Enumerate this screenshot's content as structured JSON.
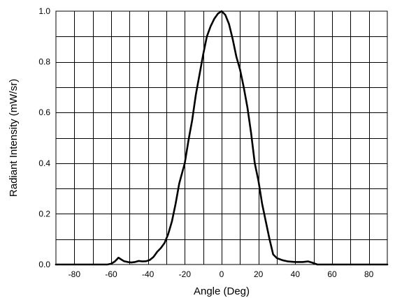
{
  "chart_data": {
    "type": "line",
    "title": "",
    "xlabel": "Angle (Deg)",
    "ylabel": "Radiant Intensity (mW/sr)",
    "xlim": [
      -90,
      90
    ],
    "ylim": [
      0,
      1.0
    ],
    "grid": true,
    "x_ticks": [
      -80,
      -60,
      -40,
      -20,
      0,
      20,
      40,
      60,
      80
    ],
    "x_tick_labels": [
      "-80",
      "-60",
      "-40",
      "-20",
      "0",
      "20",
      "40",
      "60",
      "80"
    ],
    "y_ticks": [
      0.0,
      0.2,
      0.4,
      0.6,
      0.8,
      1.0
    ],
    "y_tick_labels": [
      "0.0",
      "0.2",
      "0.4",
      "0.6",
      "0.8",
      "1.0"
    ],
    "x_grid_step": 10,
    "y_grid_step": 0.1,
    "line_color": "#000000",
    "series": [
      {
        "points": [
          [
            -90,
            0.0
          ],
          [
            -62,
            0.0
          ],
          [
            -60,
            0.003
          ],
          [
            -58,
            0.012
          ],
          [
            -56,
            0.027
          ],
          [
            -55,
            0.022
          ],
          [
            -53,
            0.013
          ],
          [
            -51,
            0.01
          ],
          [
            -49,
            0.008
          ],
          [
            -47,
            0.01
          ],
          [
            -45,
            0.014
          ],
          [
            -43,
            0.012
          ],
          [
            -41,
            0.013
          ],
          [
            -39,
            0.018
          ],
          [
            -37,
            0.03
          ],
          [
            -35,
            0.05
          ],
          [
            -33,
            0.065
          ],
          [
            -31,
            0.085
          ],
          [
            -29,
            0.12
          ],
          [
            -27,
            0.17
          ],
          [
            -25,
            0.24
          ],
          [
            -23,
            0.32
          ],
          [
            -20,
            0.4
          ],
          [
            -18,
            0.49
          ],
          [
            -16,
            0.57
          ],
          [
            -14,
            0.67
          ],
          [
            -12,
            0.75
          ],
          [
            -10,
            0.83
          ],
          [
            -8,
            0.9
          ],
          [
            -6,
            0.94
          ],
          [
            -4,
            0.97
          ],
          [
            -2,
            0.99
          ],
          [
            0,
            1.0
          ],
          [
            2,
            0.985
          ],
          [
            4,
            0.95
          ],
          [
            6,
            0.89
          ],
          [
            8,
            0.82
          ],
          [
            10,
            0.77
          ],
          [
            12,
            0.7
          ],
          [
            14,
            0.62
          ],
          [
            16,
            0.52
          ],
          [
            18,
            0.4
          ],
          [
            20,
            0.33
          ],
          [
            22,
            0.24
          ],
          [
            24,
            0.17
          ],
          [
            26,
            0.1
          ],
          [
            28,
            0.04
          ],
          [
            30,
            0.025
          ],
          [
            33,
            0.017
          ],
          [
            36,
            0.012
          ],
          [
            40,
            0.01
          ],
          [
            44,
            0.01
          ],
          [
            47,
            0.012
          ],
          [
            49,
            0.008
          ],
          [
            52,
            0.0
          ],
          [
            90,
            0.0
          ]
        ]
      }
    ]
  }
}
